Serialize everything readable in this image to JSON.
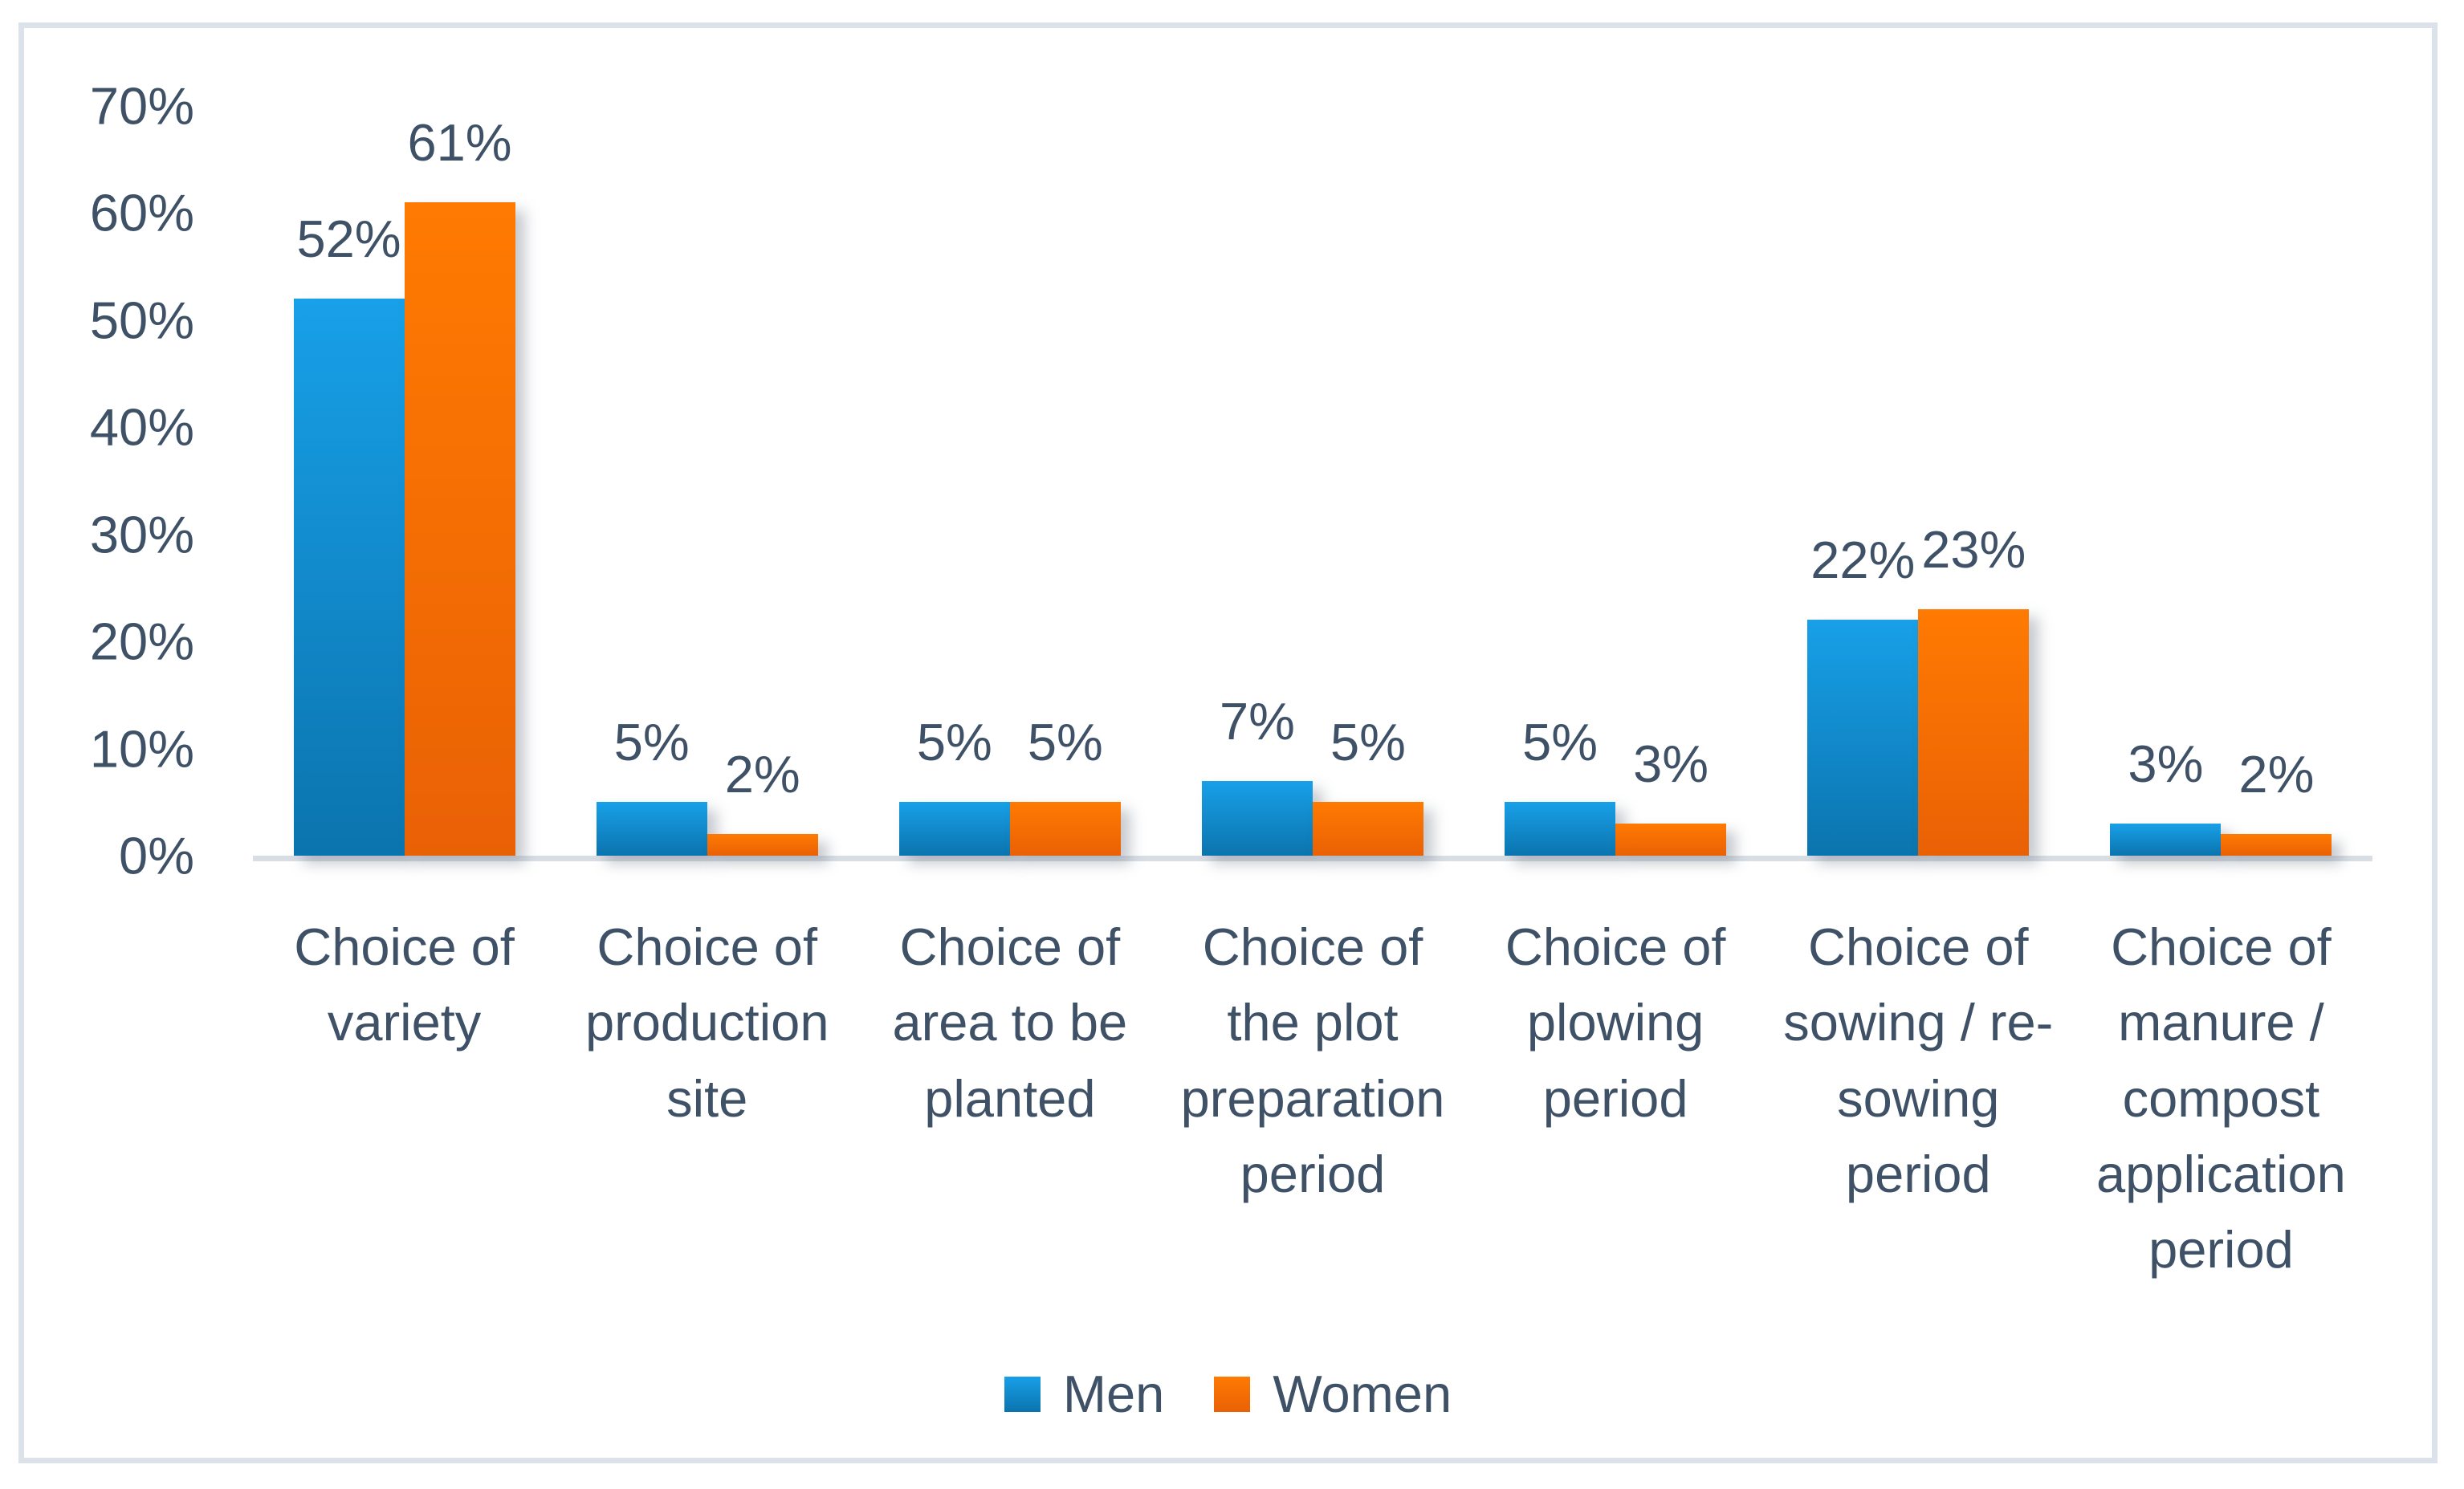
{
  "chart_data": {
    "type": "bar",
    "title": "",
    "categories": [
      "Choice of variety",
      "Choice of production site",
      "Choice of area to be planted",
      "Choice of the plot preparation period",
      "Choice of plowing period",
      "Choice of sowing / re-sowing period",
      "Choice of manure / compost application period"
    ],
    "series": [
      {
        "name": "Men",
        "color_top": "#18A0E8",
        "color_bottom": "#0B74AE",
        "values": [
          52,
          5,
          5,
          7,
          5,
          22,
          3
        ]
      },
      {
        "name": "Women",
        "color_top": "#FF7A02",
        "color_bottom": "#E96105",
        "values": [
          61,
          2,
          5,
          5,
          3,
          23,
          2
        ]
      }
    ],
    "value_suffix": "%",
    "yticks": [
      0,
      10,
      20,
      30,
      40,
      50,
      60,
      70
    ],
    "ylim": [
      0,
      70
    ],
    "grid": false,
    "legend_position": "bottom",
    "data_labels": true
  },
  "style": {
    "text_color": "#3E5166",
    "axis_line_color": "#D9DEE5",
    "frame_border_color": "#DCE2E9",
    "background": "#FFFFFF"
  }
}
